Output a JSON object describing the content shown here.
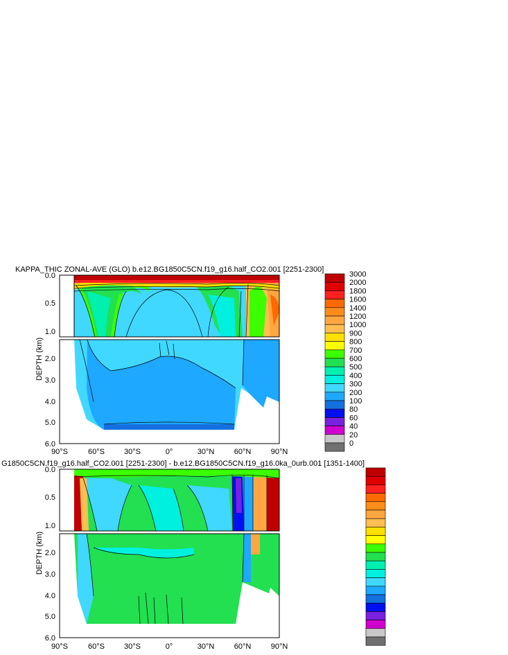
{
  "chart_data": [
    {
      "type": "heatmap",
      "title": "KAPPA_THIC ZONAL-AVE (GLO) b.e12.BG1850C5CN.f19_g16.half_CO2.001 [2251-2300]",
      "ylabel": "DEPTH (km)",
      "xlabel": "",
      "x_ticks": [
        "90°S",
        "60°S",
        "30°S",
        "0°",
        "30°N",
        "60°N",
        "90°N"
      ],
      "y_ticks_upper": [
        "0.0",
        "0.5",
        "1.0"
      ],
      "y_ticks_lower": [
        "2.0",
        "3.0",
        "4.0",
        "5.0",
        "6.0"
      ],
      "xlim": [
        -90,
        90
      ],
      "ylim_km": [
        0,
        6
      ],
      "colorbar_labels": [
        "3000",
        "2000",
        "1800",
        "1600",
        "1400",
        "1200",
        "1000",
        "900",
        "800",
        "700",
        "600",
        "500",
        "400",
        "300",
        "200",
        "100",
        "80",
        "60",
        "40",
        "20",
        "0"
      ]
    },
    {
      "type": "heatmap",
      "title": "G1850C5CN.f19_g16.half_CO2.001 [2251-2300] - b.e12.BG1850C5CN.f19_g16.0ka_0urb.001 [1351-1400]",
      "ylabel": "DEPTH (km)",
      "xlabel": "",
      "x_ticks": [
        "90°S",
        "60°S",
        "30°S",
        "0°",
        "30°N",
        "60°N",
        "90°N"
      ],
      "y_ticks_upper": [
        "0.0",
        "0.5",
        "1.0"
      ],
      "y_ticks_lower": [
        "2.0",
        "3.0",
        "4.0",
        "5.0",
        "6.0"
      ],
      "xlim": [
        -90,
        90
      ],
      "ylim_km": [
        0,
        6
      ]
    }
  ],
  "colors": {
    "colorbar": [
      "#c00000",
      "#e00000",
      "#ff2020",
      "#ff6a00",
      "#ff8c1a",
      "#ffa640",
      "#ffbe50",
      "#ffe000",
      "#ffff00",
      "#3cff00",
      "#22e050",
      "#00f0b0",
      "#00f0e0",
      "#40d8ff",
      "#1ea8ff",
      "#1470e0",
      "#0010f0",
      "#7a20e0",
      "#d000d0",
      "#c8c8c8",
      "#707070"
    ]
  }
}
